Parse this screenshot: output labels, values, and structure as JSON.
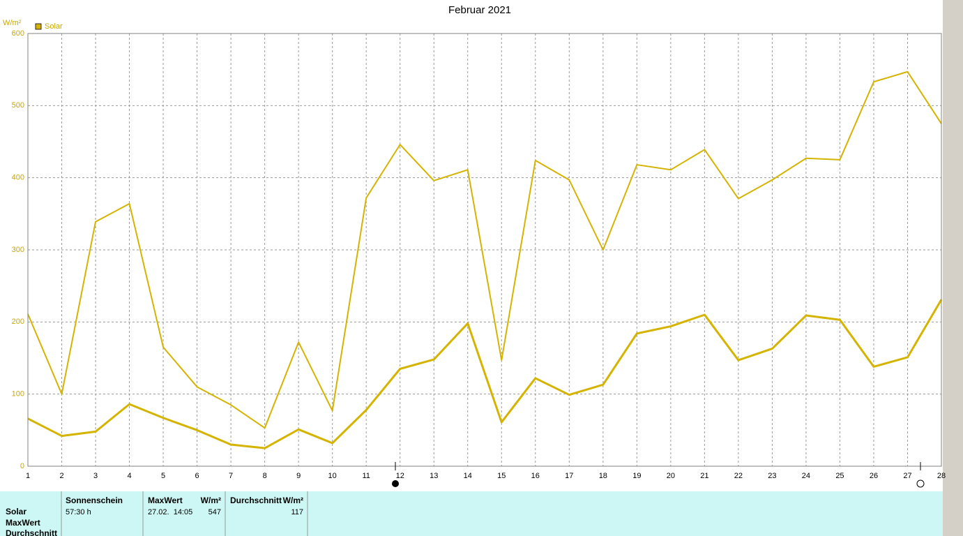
{
  "chart_data": {
    "type": "line",
    "title": "Februar 2021",
    "ylabel": "W/m²",
    "legend": "top-left",
    "grid": true,
    "x": [
      1,
      2,
      3,
      4,
      5,
      6,
      7,
      8,
      9,
      10,
      11,
      12,
      13,
      14,
      15,
      16,
      17,
      18,
      19,
      20,
      21,
      22,
      23,
      24,
      25,
      26,
      27,
      28
    ],
    "xlim": [
      1,
      28
    ],
    "xticks": [
      1,
      2,
      3,
      4,
      5,
      6,
      7,
      8,
      9,
      10,
      11,
      12,
      13,
      14,
      15,
      16,
      17,
      18,
      19,
      20,
      21,
      22,
      23,
      24,
      25,
      26,
      27,
      28
    ],
    "ylim": [
      0,
      600
    ],
    "yticks": [
      0,
      100,
      200,
      300,
      400,
      500,
      600
    ],
    "series": [
      {
        "name": "Solar",
        "color": "#d4b400",
        "width": 3,
        "values": [
          66,
          42,
          48,
          86,
          67,
          50,
          30,
          25,
          51,
          32,
          78,
          135,
          148,
          198,
          61,
          122,
          99,
          113,
          184,
          194,
          210,
          147,
          163,
          209,
          203,
          138,
          151,
          231
        ]
      },
      {
        "color": "#d4b400",
        "width": 2,
        "values": [
          211,
          100,
          339,
          364,
          165,
          110,
          85,
          53,
          172,
          77,
          372,
          446,
          396,
          411,
          147,
          424,
          397,
          300,
          418,
          411,
          439,
          371,
          397,
          427,
          425,
          533,
          547,
          475
        ]
      }
    ]
  },
  "table": {
    "row_labels": [
      "Solar",
      "MaxWert",
      "Durchschnitt"
    ],
    "columns": [
      {
        "title": "Sonnenschein",
        "values": [
          "57:30 h"
        ]
      },
      {
        "title": "MaxWert",
        "unit": "W/m²",
        "values": [
          "27.02.  14:05",
          547
        ]
      },
      {
        "title": "Durchschnitt",
        "unit": "W/m²",
        "values": [
          117
        ]
      }
    ]
  }
}
